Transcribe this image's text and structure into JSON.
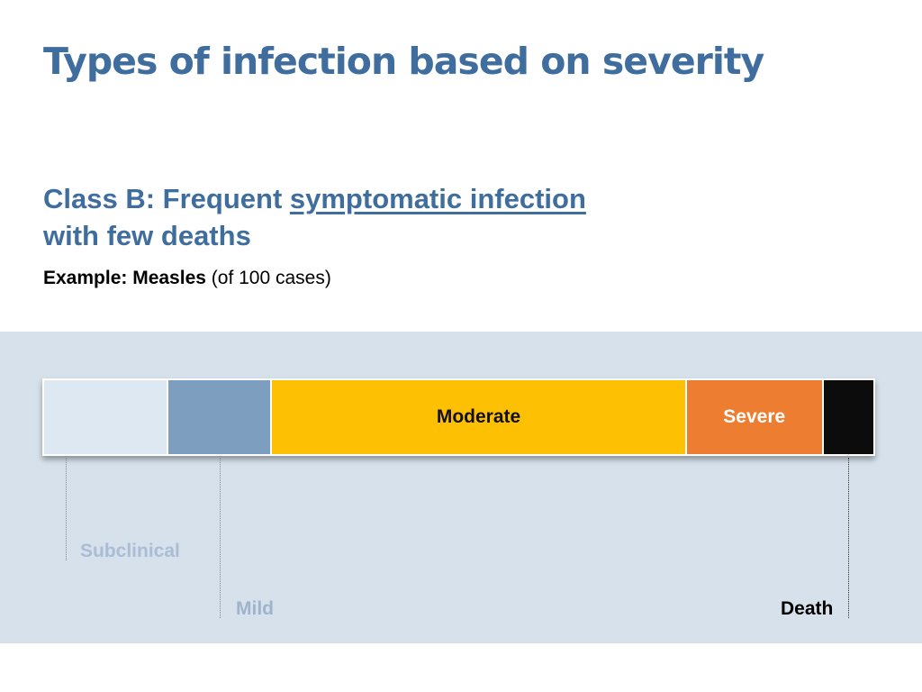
{
  "slide": {
    "title": "Types of infection based on severity",
    "subtitle_part1": "Class B: Frequent ",
    "subtitle_link": "symptomatic infection",
    "subtitle_part2": "with few deaths",
    "example_bold": "Example: Measles",
    "example_rest": " (of 100 cases)"
  },
  "severity_bar": {
    "segments": [
      {
        "key": "subclinical",
        "share": 15,
        "color": "#dde8f3",
        "label": "",
        "text_color": "#000000"
      },
      {
        "key": "mild",
        "share": 12.5,
        "color": "#7e9ec0",
        "label": "",
        "text_color": "#000000"
      },
      {
        "key": "moderate",
        "share": 50,
        "color": "#fdc002",
        "label": "Moderate",
        "text_color": "#111111"
      },
      {
        "key": "severe",
        "share": 16.5,
        "color": "#ed7d31",
        "label": "Severe",
        "text_color": "#ffffff"
      },
      {
        "key": "death",
        "share": 6,
        "color": "#0c0c0c",
        "label": "",
        "text_color": "#ffffff"
      }
    ]
  },
  "callouts": {
    "subclinical": {
      "label": "Subclinical",
      "color": "#a9bdd4"
    },
    "mild": {
      "label": "Mild",
      "color": "#9fb4cc"
    },
    "death": {
      "label": "Death",
      "color": "#000000"
    }
  }
}
